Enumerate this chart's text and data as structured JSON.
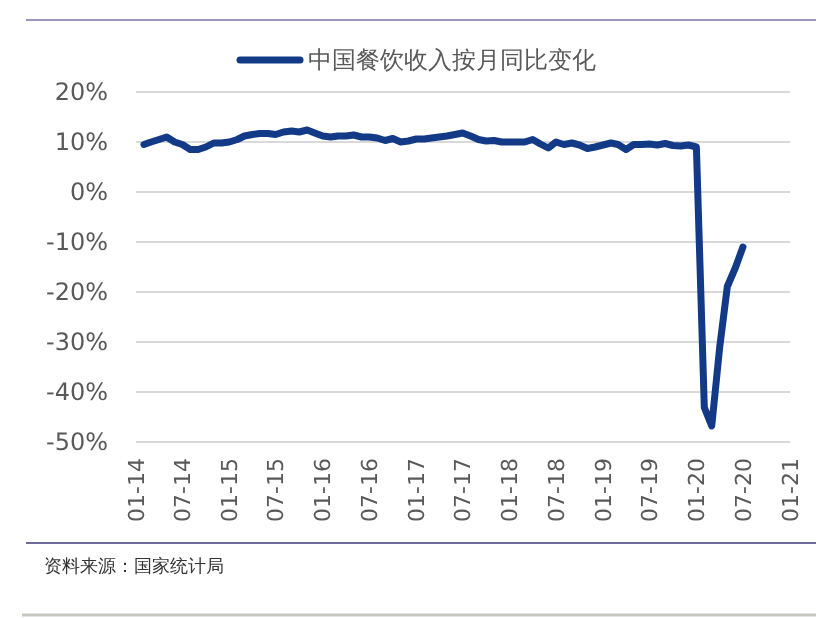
{
  "chart_data": {
    "type": "line",
    "x": [
      "2014-02",
      "2014-03",
      "2014-04",
      "2014-05",
      "2014-06",
      "2014-07",
      "2014-08",
      "2014-09",
      "2014-10",
      "2014-11",
      "2014-12",
      "2015-01",
      "2015-02",
      "2015-03",
      "2015-04",
      "2015-05",
      "2015-06",
      "2015-07",
      "2015-08",
      "2015-09",
      "2015-10",
      "2015-11",
      "2015-12",
      "2016-01",
      "2016-02",
      "2016-03",
      "2016-04",
      "2016-05",
      "2016-06",
      "2016-07",
      "2016-08",
      "2016-09",
      "2016-10",
      "2016-11",
      "2016-12",
      "2017-01",
      "2017-02",
      "2017-03",
      "2017-04",
      "2017-05",
      "2017-06",
      "2017-07",
      "2017-08",
      "2017-09",
      "2017-10",
      "2017-11",
      "2017-12",
      "2018-01",
      "2018-02",
      "2018-03",
      "2018-04",
      "2018-05",
      "2018-06",
      "2018-07",
      "2018-08",
      "2018-09",
      "2018-10",
      "2018-11",
      "2018-12",
      "2019-01",
      "2019-02",
      "2019-03",
      "2019-04",
      "2019-05",
      "2019-06",
      "2019-07",
      "2019-08",
      "2019-09",
      "2019-10",
      "2019-11",
      "2019-12",
      "2020-01",
      "2020-02",
      "2020-03",
      "2020-04",
      "2020-05",
      "2020-06",
      "2020-07"
    ],
    "series": [
      {
        "name": "中国餐饮收入按月同比变化",
        "color": "#123a86",
        "values": [
          9.5,
          10.0,
          10.5,
          11.0,
          10.0,
          9.5,
          8.5,
          8.5,
          9.0,
          9.8,
          9.8,
          10.0,
          10.5,
          11.2,
          11.5,
          11.7,
          11.7,
          11.5,
          12.0,
          12.2,
          12.0,
          12.4,
          11.8,
          11.2,
          11.0,
          11.2,
          11.2,
          11.4,
          11.0,
          11.0,
          10.8,
          10.3,
          10.7,
          10.0,
          10.2,
          10.6,
          10.6,
          10.8,
          11.0,
          11.2,
          11.5,
          11.8,
          11.2,
          10.5,
          10.2,
          10.3,
          10.0,
          10.0,
          10.0,
          10.0,
          10.5,
          9.6,
          8.8,
          10.0,
          9.5,
          9.8,
          9.4,
          8.7,
          9.0,
          9.4,
          9.8,
          9.5,
          8.5,
          9.5,
          9.5,
          9.6,
          9.4,
          9.7,
          9.3,
          9.2,
          9.4,
          9.0,
          -43.1,
          -46.8,
          -31.1,
          -18.9,
          -15.2,
          -11.0
        ]
      }
    ],
    "xlim": [
      "2014-01",
      "2021-01"
    ],
    "xticks": [
      {
        "value": "2014-01",
        "label": "01-14"
      },
      {
        "value": "2014-07",
        "label": "07-14"
      },
      {
        "value": "2015-01",
        "label": "01-15"
      },
      {
        "value": "2015-07",
        "label": "07-15"
      },
      {
        "value": "2016-01",
        "label": "01-16"
      },
      {
        "value": "2016-07",
        "label": "07-16"
      },
      {
        "value": "2017-01",
        "label": "01-17"
      },
      {
        "value": "2017-07",
        "label": "07-17"
      },
      {
        "value": "2018-01",
        "label": "01-18"
      },
      {
        "value": "2018-07",
        "label": "07-18"
      },
      {
        "value": "2019-01",
        "label": "01-19"
      },
      {
        "value": "2019-07",
        "label": "07-19"
      },
      {
        "value": "2020-01",
        "label": "01-20"
      },
      {
        "value": "2020-07",
        "label": "07-20"
      },
      {
        "value": "2021-01",
        "label": "01-21"
      }
    ],
    "ylim": [
      -50,
      20
    ],
    "yticks": [
      {
        "value": 20,
        "label": "20%"
      },
      {
        "value": 10,
        "label": "10%"
      },
      {
        "value": 0,
        "label": "0%"
      },
      {
        "value": -10,
        "label": "-10%"
      },
      {
        "value": -20,
        "label": "-20%"
      },
      {
        "value": -30,
        "label": "-30%"
      },
      {
        "value": -40,
        "label": "-40%"
      },
      {
        "value": -50,
        "label": "-50%"
      }
    ],
    "grid": "y",
    "legend": "top",
    "marker": "none",
    "line_style": "solid",
    "annotations": [
      "资料来源：国家统计局"
    ]
  }
}
